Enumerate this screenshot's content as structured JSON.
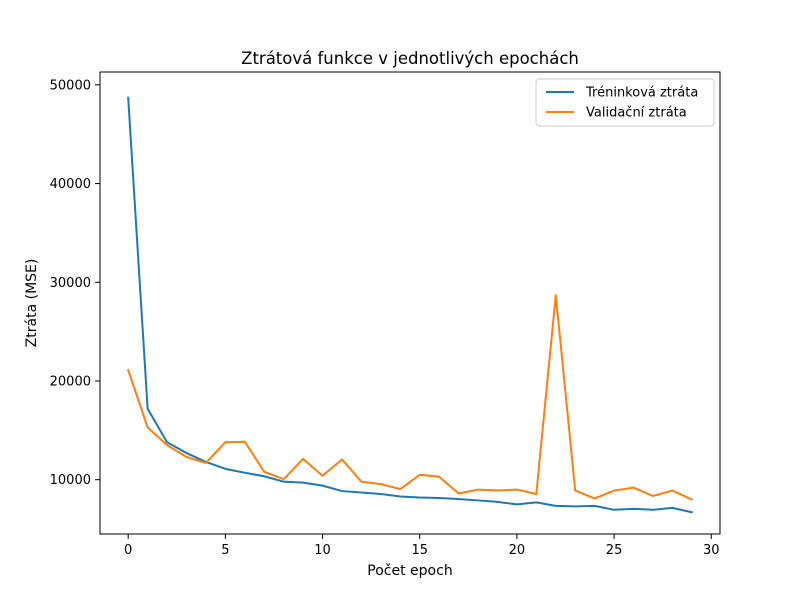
{
  "chart_data": {
    "type": "line",
    "title": "Ztrátová funkce v jednotlivých epochách",
    "xlabel": "Počet epoch",
    "ylabel": "Ztráta (MSE)",
    "xlim": [
      -1.45,
      30.45
    ],
    "ylim": [
      4500,
      51300
    ],
    "xticks": [
      0,
      5,
      10,
      15,
      20,
      25,
      30
    ],
    "yticks": [
      10000,
      20000,
      30000,
      40000,
      50000
    ],
    "x": [
      0,
      1,
      2,
      3,
      4,
      5,
      6,
      7,
      8,
      9,
      10,
      11,
      12,
      13,
      14,
      15,
      16,
      17,
      18,
      19,
      20,
      21,
      22,
      23,
      24,
      25,
      26,
      27,
      28,
      29
    ],
    "legend_position": "top-right",
    "grid": false,
    "series": [
      {
        "name": "Tréninková ztráta",
        "color": "#1f77b4",
        "values": [
          48700,
          17200,
          13800,
          12700,
          11800,
          11100,
          10700,
          10350,
          9800,
          9700,
          9400,
          8850,
          8700,
          8550,
          8300,
          8200,
          8150,
          8050,
          7900,
          7750,
          7500,
          7700,
          7350,
          7300,
          7350,
          6950,
          7050,
          6950,
          7150,
          6700
        ]
      },
      {
        "name": "Validační ztráta",
        "color": "#ff7f0e",
        "values": [
          21100,
          15300,
          13500,
          12300,
          11700,
          13800,
          13850,
          10800,
          10050,
          12100,
          10400,
          12050,
          9800,
          9550,
          9050,
          10500,
          10300,
          8600,
          9000,
          8900,
          9000,
          8550,
          28700,
          8900,
          8100,
          8900,
          9200,
          8350,
          8900,
          8000
        ]
      }
    ]
  }
}
